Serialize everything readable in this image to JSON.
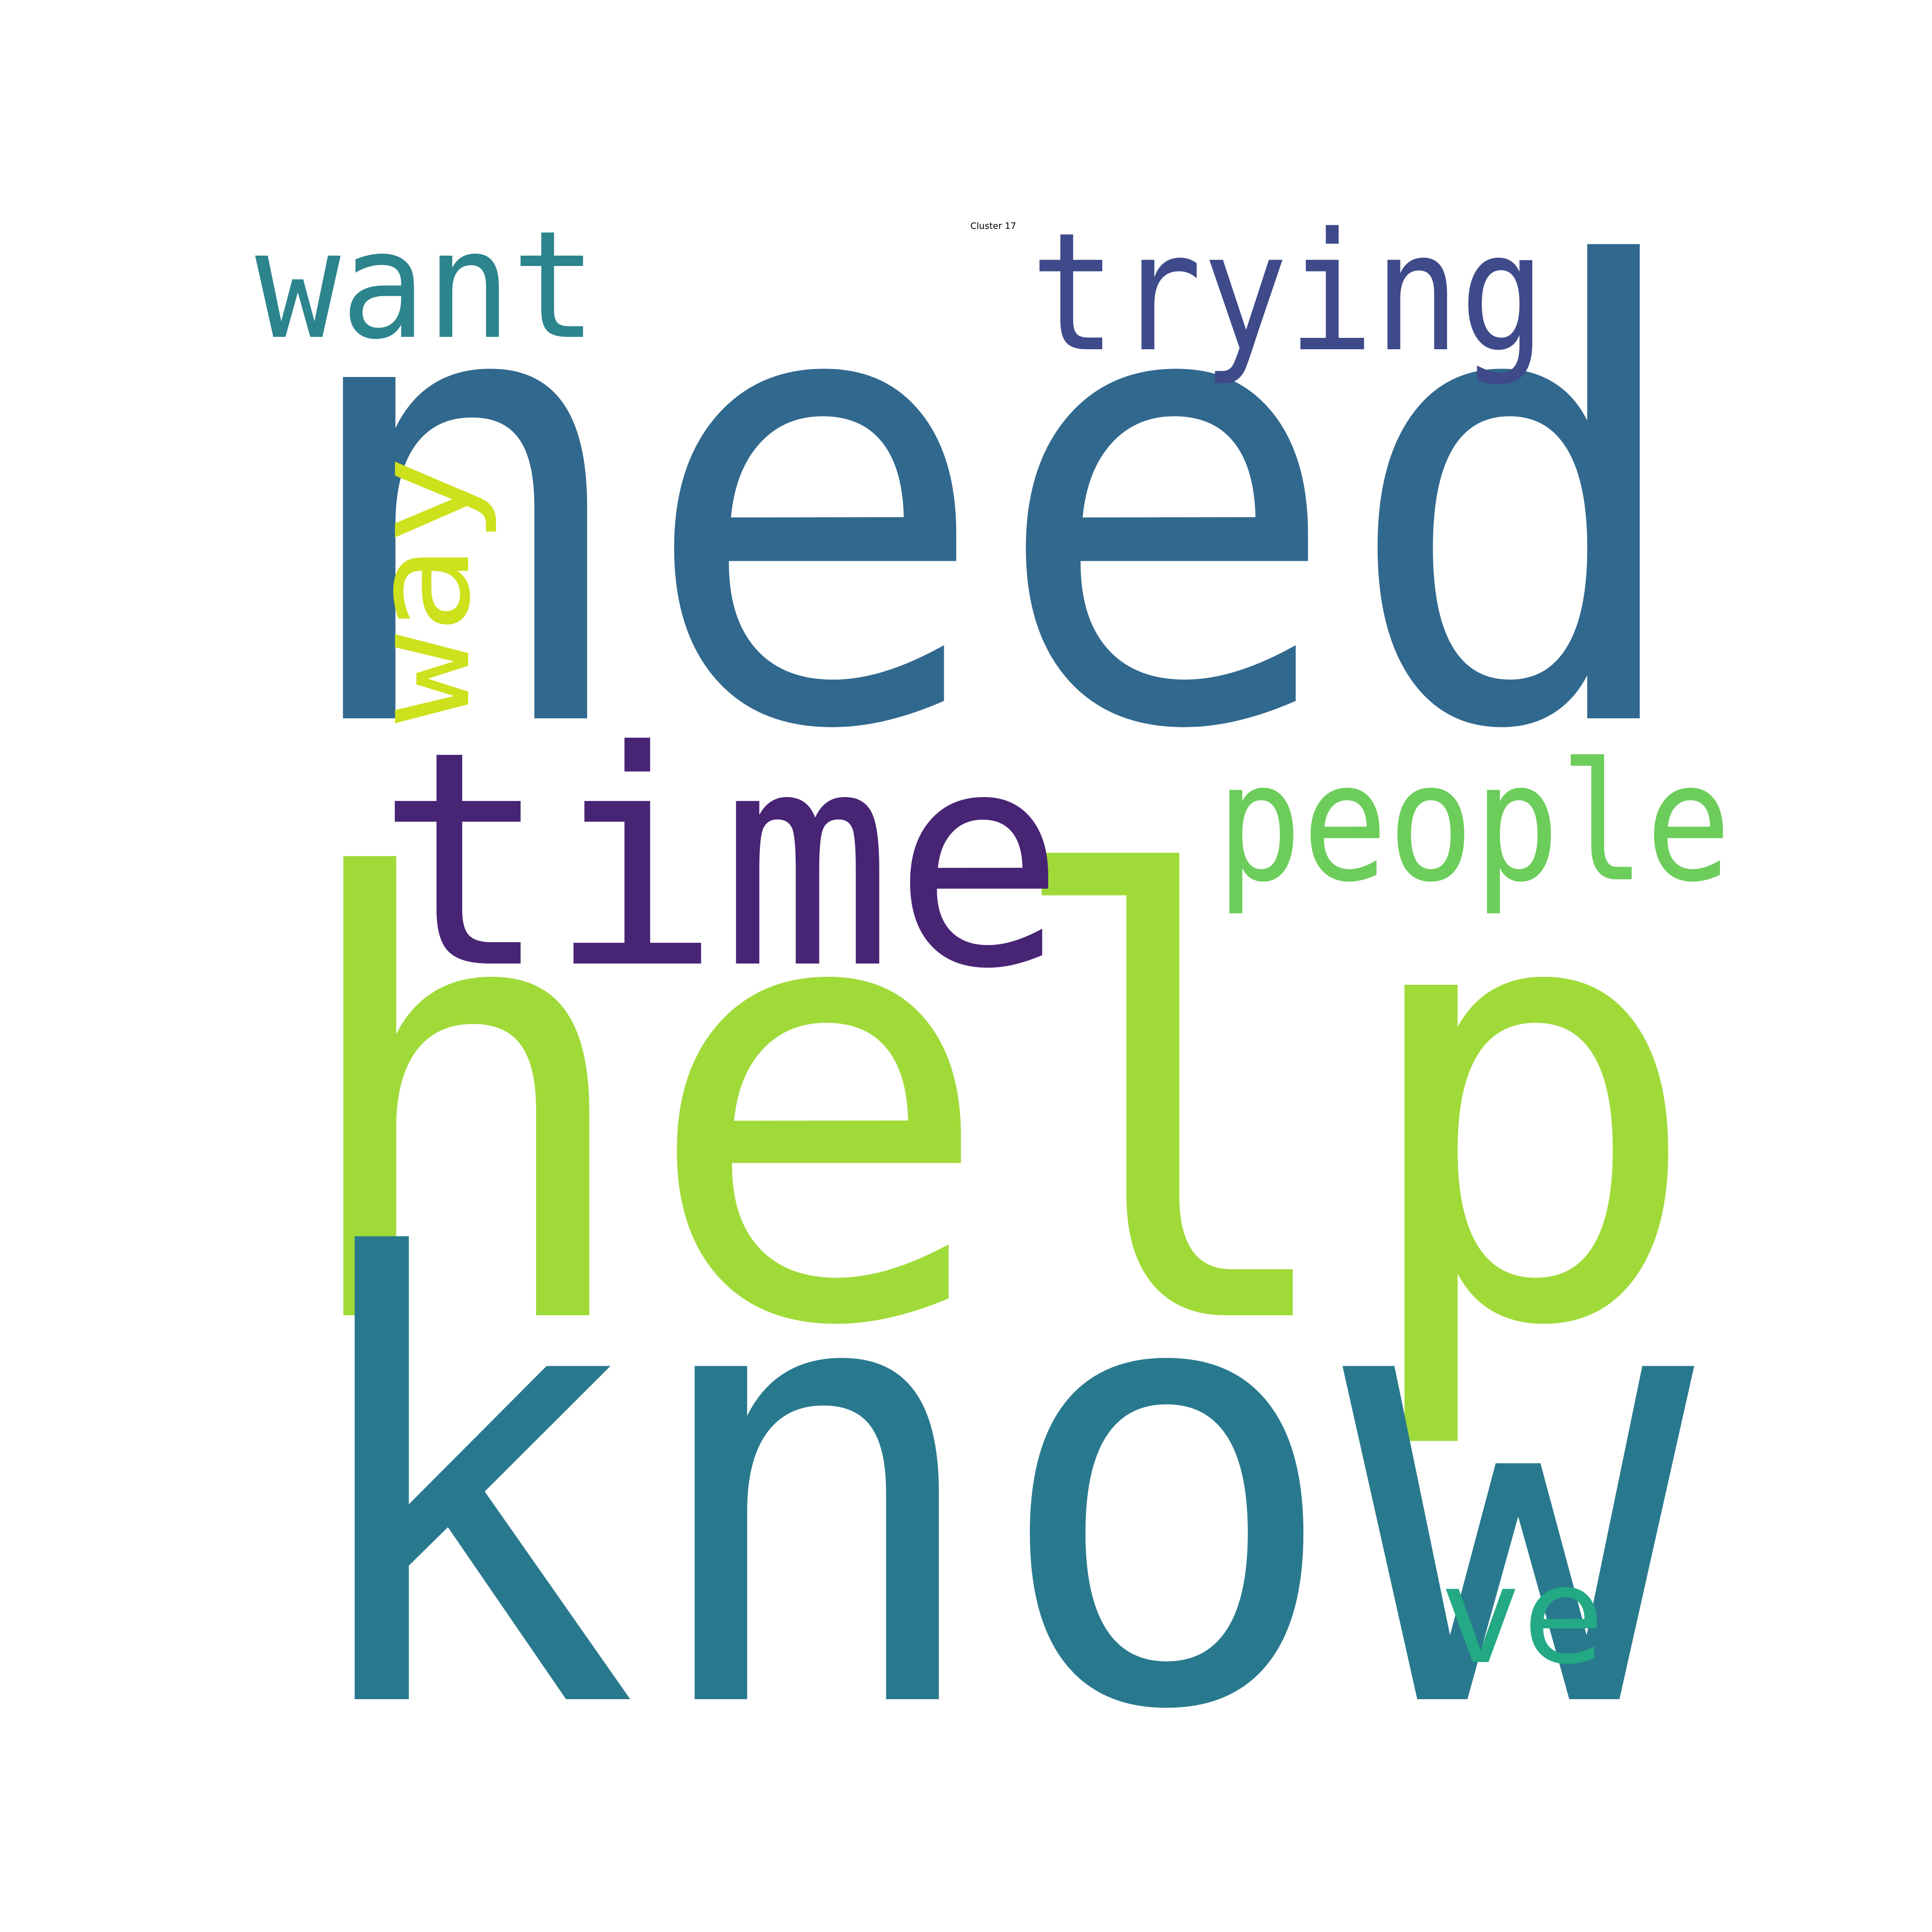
{
  "title": "Cluster 17",
  "words": [
    {
      "id": "need",
      "text": "need",
      "color": "#31688e",
      "rotated": false
    },
    {
      "id": "help",
      "text": "help",
      "color": "#a0da39",
      "rotated": false
    },
    {
      "id": "know",
      "text": "know",
      "color": "#29798e",
      "rotated": false
    },
    {
      "id": "time",
      "text": "time",
      "color": "#482475",
      "rotated": false
    },
    {
      "id": "trying",
      "text": "trying",
      "color": "#3e4a89",
      "rotated": false
    },
    {
      "id": "want",
      "text": "want",
      "color": "#2c848d",
      "rotated": false
    },
    {
      "id": "people",
      "text": "people",
      "color": "#6ccd5a",
      "rotated": false
    },
    {
      "id": "way",
      "text": "way",
      "color": "#cde11d",
      "rotated": true
    },
    {
      "id": "ve",
      "text": "ve",
      "color": "#23a983",
      "rotated": false
    }
  ]
}
